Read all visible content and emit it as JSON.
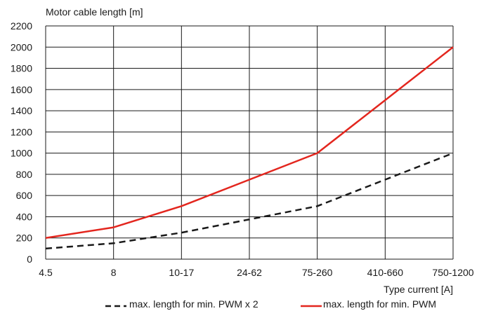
{
  "chart_data": {
    "type": "line",
    "title": "",
    "ylabel": "Motor cable length [m]",
    "xlabel": "Type current [A]",
    "categories": [
      "4.5",
      "8",
      "10-17",
      "24-62",
      "75-260",
      "410-660",
      "750-1200"
    ],
    "yticks": [
      0,
      200,
      400,
      600,
      800,
      1000,
      1200,
      1400,
      1600,
      1800,
      2000,
      2200
    ],
    "ylim": [
      0,
      2200
    ],
    "grid": true,
    "legend_position": "bottom",
    "series": [
      {
        "name": "max. length for min. PWM x 2",
        "values": [
          100,
          150,
          250,
          375,
          500,
          750,
          1000
        ],
        "color": "#1a1a1a",
        "style": "dashed"
      },
      {
        "name": "max. length for min. PWM",
        "values": [
          200,
          300,
          500,
          750,
          1000,
          1500,
          2000
        ],
        "color": "#e3261e",
        "style": "solid"
      }
    ]
  }
}
